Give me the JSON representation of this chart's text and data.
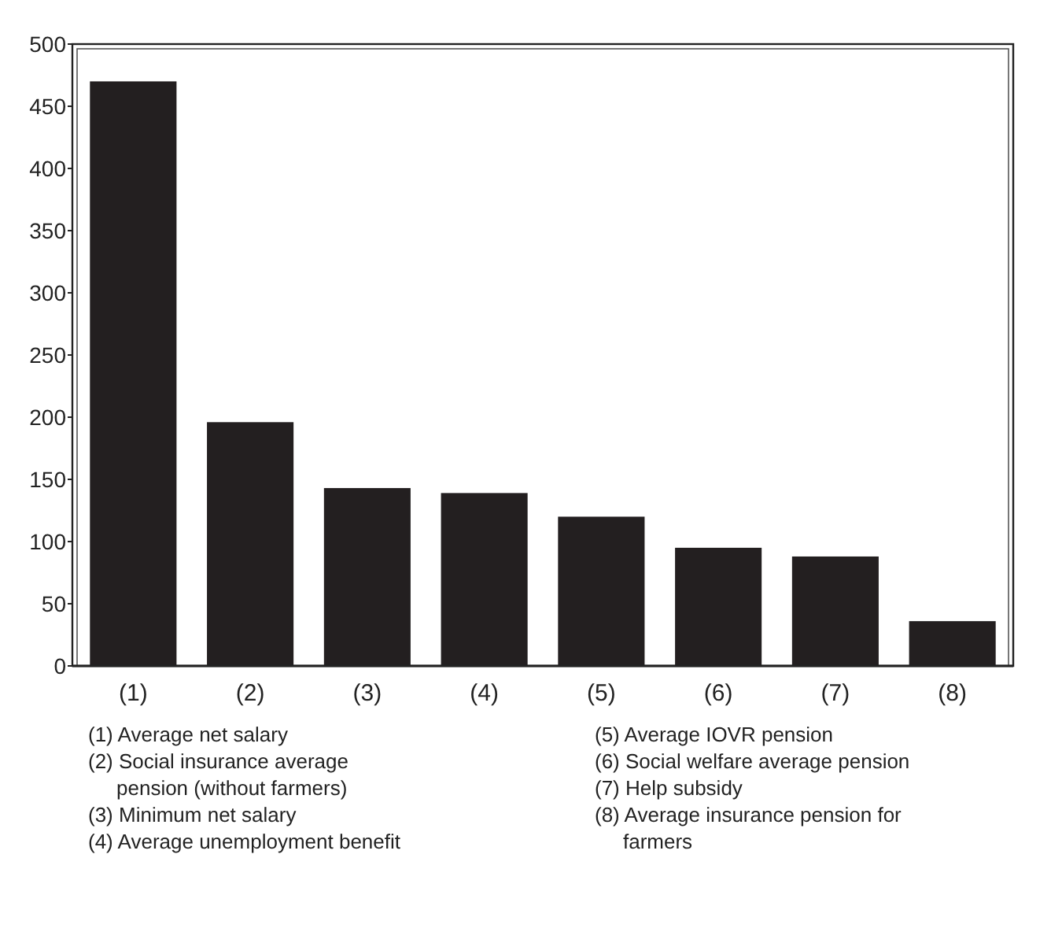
{
  "chart_data": {
    "type": "bar",
    "categories": [
      "(1)",
      "(2)",
      "(3)",
      "(4)",
      "(5)",
      "(6)",
      "(7)",
      "(8)"
    ],
    "values": [
      470,
      196,
      143,
      139,
      120,
      95,
      88,
      36
    ],
    "color": "#231f20",
    "ylim": [
      0,
      500
    ],
    "yticks": [
      0,
      50,
      100,
      150,
      200,
      250,
      300,
      350,
      400,
      450,
      500
    ],
    "grid": false,
    "annotations": [
      "(1) Average net salary",
      "(2) Social insurance average pension (without farmers)",
      "(3) Minimum net  salary",
      "(4) Average unemployment benefit",
      "(5) Average IOVR pension",
      "(6) Social welfare average pension",
      "(7) Help subsidy",
      "(8) Average insurance pension for farmers"
    ]
  }
}
